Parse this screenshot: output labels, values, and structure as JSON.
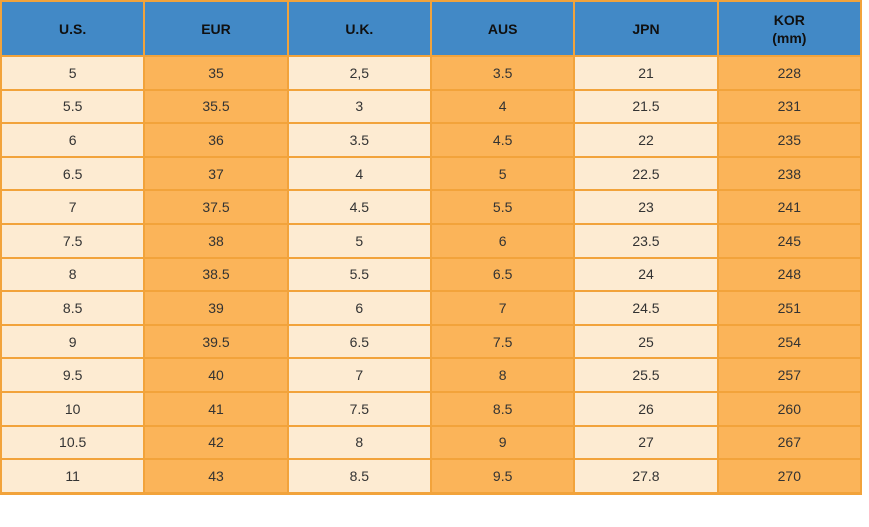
{
  "chart_data": {
    "type": "table",
    "title": "",
    "columns": [
      {
        "label": "U.S."
      },
      {
        "label": "EUR"
      },
      {
        "label": "U.K."
      },
      {
        "label": "AUS"
      },
      {
        "label": "JPN"
      },
      {
        "label": "KOR",
        "sub": "(mm)"
      }
    ],
    "rows": [
      [
        "5",
        "35",
        "2,5",
        "3.5",
        "21",
        "228"
      ],
      [
        "5.5",
        "35.5",
        "3",
        "4",
        "21.5",
        "231"
      ],
      [
        "6",
        "36",
        "3.5",
        "4.5",
        "22",
        "235"
      ],
      [
        "6.5",
        "37",
        "4",
        "5",
        "22.5",
        "238"
      ],
      [
        "7",
        "37.5",
        "4.5",
        "5.5",
        "23",
        "241"
      ],
      [
        "7.5",
        "38",
        "5",
        "6",
        "23.5",
        "245"
      ],
      [
        "8",
        "38.5",
        "5.5",
        "6.5",
        "24",
        "248"
      ],
      [
        "8.5",
        "39",
        "6",
        "7",
        "24.5",
        "251"
      ],
      [
        "9",
        "39.5",
        "6.5",
        "7.5",
        "25",
        "254"
      ],
      [
        "9.5",
        "40",
        "7",
        "8",
        "25.5",
        "257"
      ],
      [
        "10",
        "41",
        "7.5",
        "8.5",
        "26",
        "260"
      ],
      [
        "10.5",
        "42",
        "8",
        "9",
        "27",
        "267"
      ],
      [
        "11",
        "43",
        "8.5",
        "9.5",
        "27.8",
        "270"
      ]
    ]
  },
  "colors": {
    "header_bg": "#4289C6",
    "column_light": "#FDEBD2",
    "column_orange": "#FBB459",
    "grid_border": "#F2A33B",
    "header_text": "#101010",
    "cell_text": "#333333"
  }
}
